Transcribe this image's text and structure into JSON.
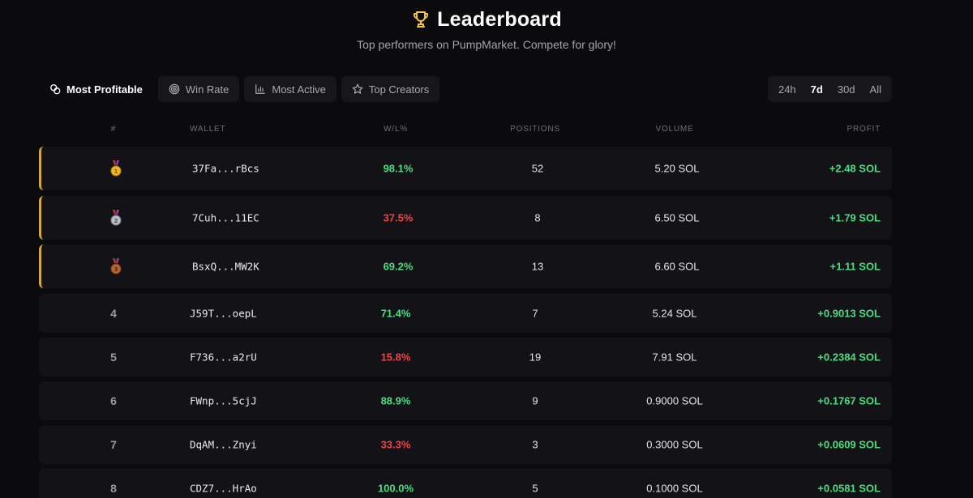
{
  "header": {
    "title": "Leaderboard",
    "subtitle": "Top performers on PumpMarket. Compete for glory!",
    "trophy_icon": "trophy-icon"
  },
  "tabs": [
    {
      "label": "Most Profitable",
      "icon": "coins-icon",
      "active": true
    },
    {
      "label": "Win Rate",
      "icon": "target-icon",
      "active": false
    },
    {
      "label": "Most Active",
      "icon": "bar-chart-icon",
      "active": false
    },
    {
      "label": "Top Creators",
      "icon": "star-icon",
      "active": false
    }
  ],
  "ranges": [
    {
      "label": "24h",
      "active": false
    },
    {
      "label": "7d",
      "active": true
    },
    {
      "label": "30d",
      "active": false
    },
    {
      "label": "All",
      "active": false
    }
  ],
  "columns": {
    "rank": "#",
    "wallet": "WALLET",
    "wl": "W/L%",
    "positions": "POSITIONS",
    "volume": "VOLUME",
    "profit": "PROFIT"
  },
  "colors": {
    "accent_gold": "#d4a93a",
    "positive": "#4ade80",
    "negative": "#ef4444",
    "background": "#0b0b0d",
    "row_bg": "#131317"
  },
  "rows": [
    {
      "rank": "1",
      "medal": "gold-medal-icon",
      "wallet": "37Fa...rBcs",
      "wl": "98.1%",
      "wl_status": "pos",
      "positions": "52",
      "volume": "5.20 SOL",
      "profit": "+2.48 SOL"
    },
    {
      "rank": "2",
      "medal": "silver-medal-icon",
      "wallet": "7Cuh...11EC",
      "wl": "37.5%",
      "wl_status": "neg",
      "positions": "8",
      "volume": "6.50 SOL",
      "profit": "+1.79 SOL"
    },
    {
      "rank": "3",
      "medal": "bronze-medal-icon",
      "wallet": "BsxQ...MW2K",
      "wl": "69.2%",
      "wl_status": "pos",
      "positions": "13",
      "volume": "6.60 SOL",
      "profit": "+1.11 SOL"
    },
    {
      "rank": "4",
      "medal": "",
      "wallet": "J59T...oepL",
      "wl": "71.4%",
      "wl_status": "pos",
      "positions": "7",
      "volume": "5.24 SOL",
      "profit": "+0.9013 SOL"
    },
    {
      "rank": "5",
      "medal": "",
      "wallet": "F736...a2rU",
      "wl": "15.8%",
      "wl_status": "neg",
      "positions": "19",
      "volume": "7.91 SOL",
      "profit": "+0.2384 SOL"
    },
    {
      "rank": "6",
      "medal": "",
      "wallet": "FWnp...5cjJ",
      "wl": "88.9%",
      "wl_status": "pos",
      "positions": "9",
      "volume": "0.9000 SOL",
      "profit": "+0.1767 SOL"
    },
    {
      "rank": "7",
      "medal": "",
      "wallet": "DqAM...Znyi",
      "wl": "33.3%",
      "wl_status": "neg",
      "positions": "3",
      "volume": "0.3000 SOL",
      "profit": "+0.0609 SOL"
    },
    {
      "rank": "8",
      "medal": "",
      "wallet": "CDZ7...HrAo",
      "wl": "100.0%",
      "wl_status": "pos",
      "positions": "5",
      "volume": "0.1000 SOL",
      "profit": "+0.0581 SOL"
    }
  ]
}
